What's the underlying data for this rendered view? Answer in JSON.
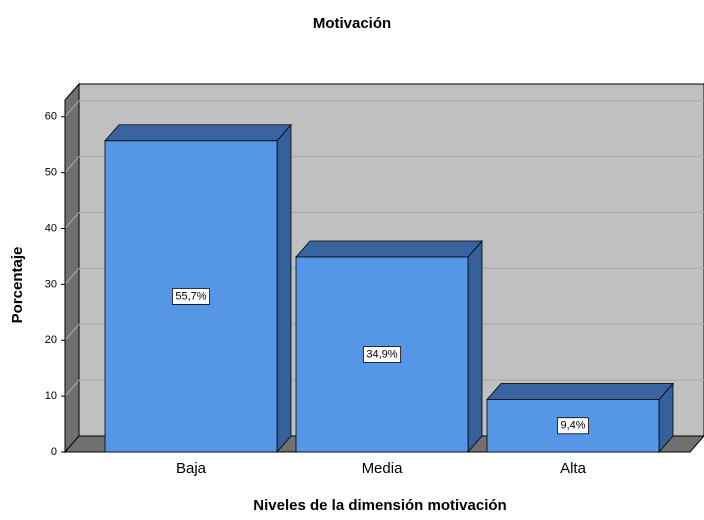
{
  "chart_data": {
    "type": "bar3d",
    "title": "Motivación",
    "x_label": "Niveles de la dimensión motivación",
    "y_label": "Porcentaje",
    "categories": [
      "Baja",
      "Media",
      "Alta"
    ],
    "values": [
      55.7,
      34.9,
      9.4
    ],
    "value_labels": [
      "55,7%",
      "34,9%",
      "9,4%"
    ],
    "color": "#5596e6",
    "ylim": [
      0,
      63
    ],
    "yticks": [
      0,
      10,
      20,
      30,
      40,
      50,
      60
    ],
    "grid": true
  }
}
